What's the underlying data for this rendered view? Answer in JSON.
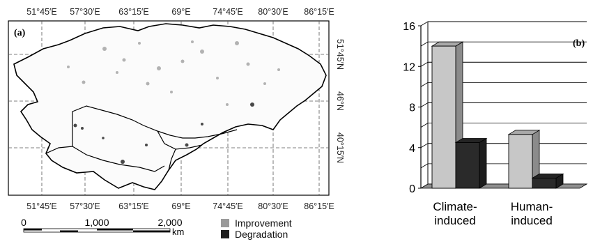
{
  "figure": {
    "panel_a_label": "(a)",
    "panel_b_label": "(b)"
  },
  "map": {
    "lon_labels": [
      "51°45′E",
      "57°30′E",
      "63°15′E",
      "69°E",
      "74°45′E",
      "80°30′E",
      "86°15′E"
    ],
    "lat_labels_right": [
      "51°45′N",
      "46°N",
      "40°15′N"
    ],
    "scale_bar": {
      "ticks": [
        "0",
        "1,000",
        "2,000"
      ],
      "unit": "km"
    },
    "legend": [
      {
        "label": "Improvement",
        "color": "#9a9a9a"
      },
      {
        "label": "Degradation",
        "color": "#1c1c1c"
      }
    ]
  },
  "chart_data": {
    "type": "bar",
    "categories": [
      "Climate-\ninduced",
      "Human-\ninduced"
    ],
    "category_lines": [
      [
        "Climate-",
        "induced"
      ],
      [
        "Human-",
        "induced"
      ]
    ],
    "series": [
      {
        "values": [
          14,
          5.3
        ],
        "color": "#c7c7c7"
      },
      {
        "values": [
          4.5,
          1.0
        ],
        "color": "#2a2a2a"
      }
    ],
    "yticks": [
      "0",
      "4",
      "8",
      "12",
      "16"
    ],
    "ylim": [
      0,
      16
    ],
    "title": "",
    "xlabel": "",
    "ylabel": "",
    "grid": true,
    "legend_placement": "none"
  }
}
